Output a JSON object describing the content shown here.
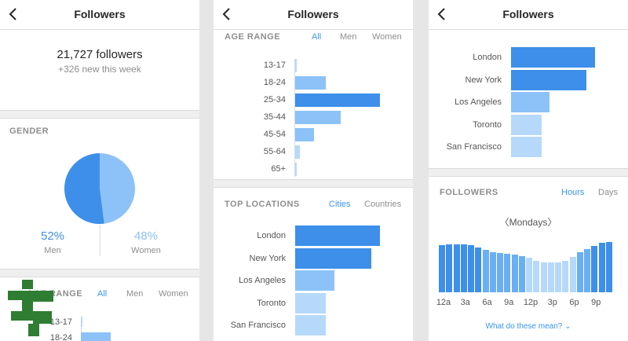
{
  "header": {
    "title": "Followers"
  },
  "summary": {
    "followers": "21,727 followers",
    "new_this_week": "+326 new this week"
  },
  "gender": {
    "label": "GENDER",
    "men_pct": "52%",
    "men_label": "Men",
    "men_share": 0.52,
    "women_pct": "48%",
    "women_label": "Women",
    "women_share": 0.48,
    "colors": {
      "men": "#3d8fe9",
      "women": "#8cc2f8"
    }
  },
  "age_range": {
    "label": "AGE RANGE",
    "partial_label": "AGE RANGE",
    "tabs": [
      "All",
      "Men",
      "Women"
    ],
    "active_tab": "All",
    "groups": [
      "13-17",
      "18-24",
      "25-34",
      "35-44",
      "45-54",
      "55-64",
      "65+"
    ],
    "values": [
      1,
      18,
      50,
      27,
      11,
      3,
      1
    ]
  },
  "top_locations": {
    "label": "TOP LOCATIONS",
    "tabs": [
      "Cities",
      "Countries"
    ],
    "active_tab": "Cities",
    "cities": [
      "London",
      "New York",
      "Los Angeles",
      "Toronto",
      "San Francisco"
    ],
    "values": [
      100,
      90,
      46,
      36,
      36
    ]
  },
  "activity": {
    "label": "FOLLOWERS",
    "tabs": [
      "Hours",
      "Days"
    ],
    "active_tab": "Hours",
    "day_selector": "〈Mondays〉",
    "hour_ticks": [
      "12a",
      "3a",
      "6a",
      "9a",
      "12p",
      "3p",
      "6p",
      "9p"
    ],
    "values": [
      91,
      92,
      93,
      93,
      91,
      87,
      82,
      78,
      76,
      74,
      72,
      70,
      67,
      61,
      58,
      58,
      58,
      61,
      68,
      77,
      84,
      90,
      95,
      97
    ],
    "help_link": "What do these mean? ⌄"
  },
  "colors": {
    "dark": "#3d8fe9",
    "mid": "#8cc2f8",
    "light": "#b6d9fb",
    "accent": "#3897f0"
  }
}
